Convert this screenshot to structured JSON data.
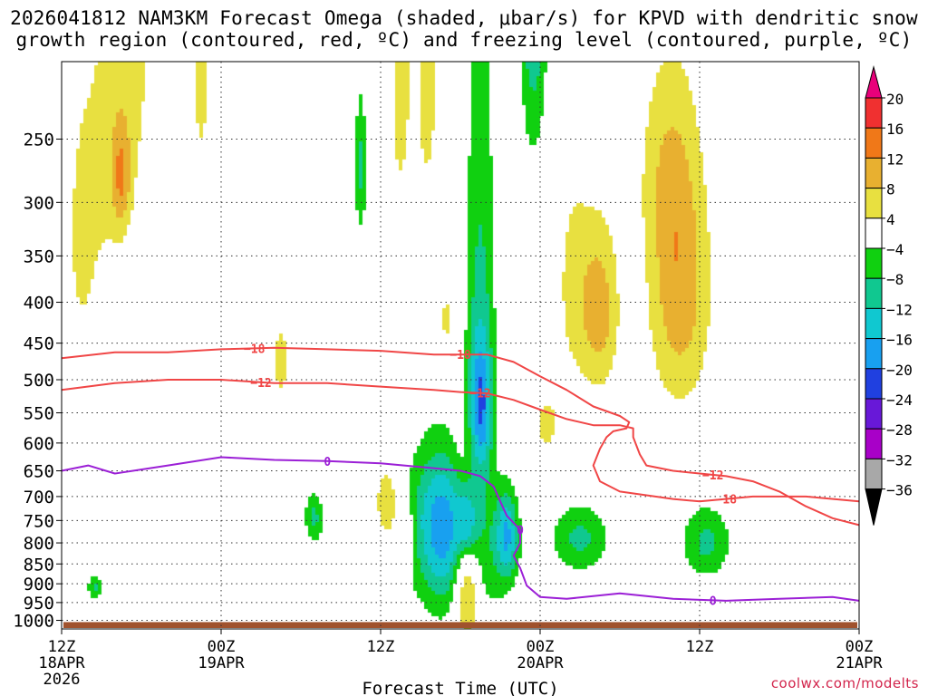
{
  "title": {
    "line1": "2026041812 NAM3KM Forecast Omega (shaded, μbar/s) for KPVD with dendritic snow",
    "line2": "growth region (contoured, red, ºC) and freezing level (contoured, purple, ºC)"
  },
  "credit": "coolwx.com/modelts",
  "chart_data": {
    "type": "heatmap",
    "xlabel": "Forecast Time (UTC)",
    "x_ticks": [
      {
        "hour": 0,
        "lines": [
          "12Z",
          "18APR",
          "2026"
        ]
      },
      {
        "hour": 12,
        "lines": [
          "00Z",
          "19APR"
        ]
      },
      {
        "hour": 24,
        "lines": [
          "12Z"
        ]
      },
      {
        "hour": 36,
        "lines": [
          "00Z",
          "20APR"
        ]
      },
      {
        "hour": 48,
        "lines": [
          "12Z"
        ]
      },
      {
        "hour": 60,
        "lines": [
          "00Z",
          "21APR"
        ]
      }
    ],
    "x_range_hours": [
      0,
      60
    ],
    "y_ticks_hpa": [
      250,
      300,
      350,
      400,
      450,
      500,
      550,
      600,
      650,
      700,
      750,
      800,
      850,
      900,
      950,
      1000
    ],
    "y_range_hpa": [
      200,
      1025
    ],
    "grid": true,
    "colorbar": {
      "labels": [
        "20",
        "16",
        "12",
        "8",
        "4",
        "−4",
        "−8",
        "−12",
        "−16",
        "−20",
        "−24",
        "−28",
        "−32",
        "−36"
      ],
      "colors": [
        "#e8007a",
        "#f03030",
        "#f07818",
        "#e8b030",
        "#e8e040",
        "#ffffff",
        "#10d010",
        "#10c890",
        "#10c8d0",
        "#18a0f0",
        "#2040e0",
        "#6818d8",
        "#a800c8",
        "#a8a8a8",
        "#000000"
      ]
    },
    "omega_fields": [
      {
        "h": 1.5,
        "p": 330,
        "v": 5,
        "sh": 0.9,
        "sp": 100
      },
      {
        "h": 3.5,
        "p": 250,
        "v": 5,
        "sh": 1.0,
        "sp": 90
      },
      {
        "h": 4.5,
        "p": 280,
        "v": 9,
        "sh": 0.5,
        "sp": 30
      },
      {
        "h": 5.5,
        "p": 200,
        "v": 5,
        "sh": 1.0,
        "sp": 70
      },
      {
        "h": 10.5,
        "p": 210,
        "v": 5,
        "sh": 0.6,
        "sp": 60
      },
      {
        "h": 16.5,
        "p": 475,
        "v": 5,
        "sh": 0.6,
        "sp": 55
      },
      {
        "h": 25.5,
        "p": 210,
        "v": 6,
        "sh": 0.6,
        "sp": 70
      },
      {
        "h": 27.5,
        "p": 215,
        "v": 6,
        "sh": 0.6,
        "sp": 60
      },
      {
        "h": 29.0,
        "p": 420,
        "v": 5,
        "sh": 0.5,
        "sp": 30
      },
      {
        "h": 36.5,
        "p": 570,
        "v": 5,
        "sh": 0.8,
        "sp": 45
      },
      {
        "h": 38.5,
        "p": 380,
        "v": 5,
        "sh": 1.0,
        "sp": 90
      },
      {
        "h": 40.5,
        "p": 410,
        "v": 10,
        "sh": 1.0,
        "sp": 70
      },
      {
        "h": 45.5,
        "p": 270,
        "v": 5,
        "sh": 1.5,
        "sp": 60
      },
      {
        "h": 46.5,
        "p": 385,
        "v": 11,
        "sh": 1.6,
        "sp": 100
      },
      {
        "h": 24.5,
        "p": 715,
        "v": 8,
        "sh": 0.6,
        "sp": 55
      },
      {
        "h": 26.0,
        "p": 785,
        "v": 6,
        "sh": 0.5,
        "sp": 45
      },
      {
        "h": 28.5,
        "p": 740,
        "v": -14,
        "sh": 1.6,
        "sp": 105
      },
      {
        "h": 30.0,
        "p": 850,
        "v": -9,
        "sh": 2.2,
        "sp": 120
      },
      {
        "h": 31.5,
        "p": 430,
        "v": -9,
        "sh": 0.8,
        "sp": 220
      },
      {
        "h": 31.5,
        "p": 540,
        "v": -14,
        "sh": 0.6,
        "sp": 70
      },
      {
        "h": 30.5,
        "p": 760,
        "v": -20,
        "sh": 0.6,
        "sp": 70
      },
      {
        "h": 30.5,
        "p": 830,
        "v": 22,
        "sh": 0.7,
        "sp": 140
      },
      {
        "h": 33.5,
        "p": 785,
        "v": -15,
        "sh": 0.6,
        "sp": 70
      },
      {
        "h": 35.5,
        "p": 120,
        "v": -17,
        "sh": 0.7,
        "sp": 80
      },
      {
        "h": 39.0,
        "p": 790,
        "v": -9,
        "sh": 1.5,
        "sp": 55
      },
      {
        "h": 48.5,
        "p": 800,
        "v": -9,
        "sh": 1.3,
        "sp": 60
      },
      {
        "h": 2.5,
        "p": 910,
        "v": -9,
        "sh": 0.4,
        "sp": 22
      },
      {
        "h": 19.0,
        "p": 745,
        "v": -9,
        "sh": 0.5,
        "sp": 40
      },
      {
        "h": 22.5,
        "p": 270,
        "v": -9,
        "sh": 0.3,
        "sp": 40
      }
    ],
    "contours": [
      {
        "label": "−18",
        "color": "#f04646",
        "label_at_hours": [
          14.5,
          30.0,
          50.0
        ],
        "points": [
          [
            0,
            470
          ],
          [
            4,
            462
          ],
          [
            8,
            462
          ],
          [
            12,
            458
          ],
          [
            16,
            456
          ],
          [
            20,
            458
          ],
          [
            24,
            460
          ],
          [
            28,
            465
          ],
          [
            32,
            465
          ],
          [
            34,
            475
          ],
          [
            36,
            495
          ],
          [
            38,
            515
          ],
          [
            40,
            540
          ],
          [
            42,
            555
          ],
          [
            42.7,
            565
          ],
          [
            42.5,
            575
          ],
          [
            41.5,
            580
          ],
          [
            41,
            590
          ],
          [
            40.5,
            610
          ],
          [
            40,
            640
          ],
          [
            40.5,
            670
          ],
          [
            42,
            690
          ],
          [
            46,
            705
          ],
          [
            48,
            710
          ],
          [
            52,
            700
          ],
          [
            56,
            700
          ],
          [
            60,
            710
          ]
        ]
      },
      {
        "label": "−12",
        "color": "#f04646",
        "label_at_hours": [
          15.0,
          31.5,
          49.0
        ],
        "points": [
          [
            0,
            515
          ],
          [
            4,
            505
          ],
          [
            8,
            500
          ],
          [
            12,
            500
          ],
          [
            16,
            505
          ],
          [
            20,
            505
          ],
          [
            24,
            510
          ],
          [
            28,
            515
          ],
          [
            30,
            518
          ],
          [
            32,
            520
          ],
          [
            34,
            530
          ],
          [
            36,
            545
          ],
          [
            38,
            560
          ],
          [
            40,
            570
          ],
          [
            42,
            570
          ],
          [
            43,
            575
          ],
          [
            43,
            590
          ],
          [
            43.5,
            620
          ],
          [
            44,
            640
          ],
          [
            46,
            650
          ],
          [
            48,
            655
          ],
          [
            50,
            660
          ],
          [
            52,
            670
          ],
          [
            54,
            690
          ],
          [
            56,
            720
          ],
          [
            58,
            745
          ],
          [
            60,
            760
          ]
        ]
      },
      {
        "label": "0",
        "color": "#9b1fd6",
        "label_at_hours": [
          20.0,
          34.5,
          49.0
        ],
        "points": [
          [
            0,
            650
          ],
          [
            2,
            640
          ],
          [
            4,
            655
          ],
          [
            8,
            640
          ],
          [
            12,
            625
          ],
          [
            16,
            630
          ],
          [
            20,
            632
          ],
          [
            24,
            636
          ],
          [
            28,
            645
          ],
          [
            30,
            650
          ],
          [
            31.5,
            660
          ],
          [
            32.5,
            680
          ],
          [
            33,
            710
          ],
          [
            33.5,
            740
          ],
          [
            34.5,
            770
          ],
          [
            34.5,
            800
          ],
          [
            34,
            830
          ],
          [
            34.5,
            860
          ],
          [
            35,
            905
          ],
          [
            36,
            935
          ],
          [
            38,
            940
          ],
          [
            42,
            925
          ],
          [
            46,
            940
          ],
          [
            50,
            945
          ],
          [
            54,
            940
          ],
          [
            58,
            935
          ],
          [
            60,
            945
          ]
        ]
      }
    ]
  }
}
